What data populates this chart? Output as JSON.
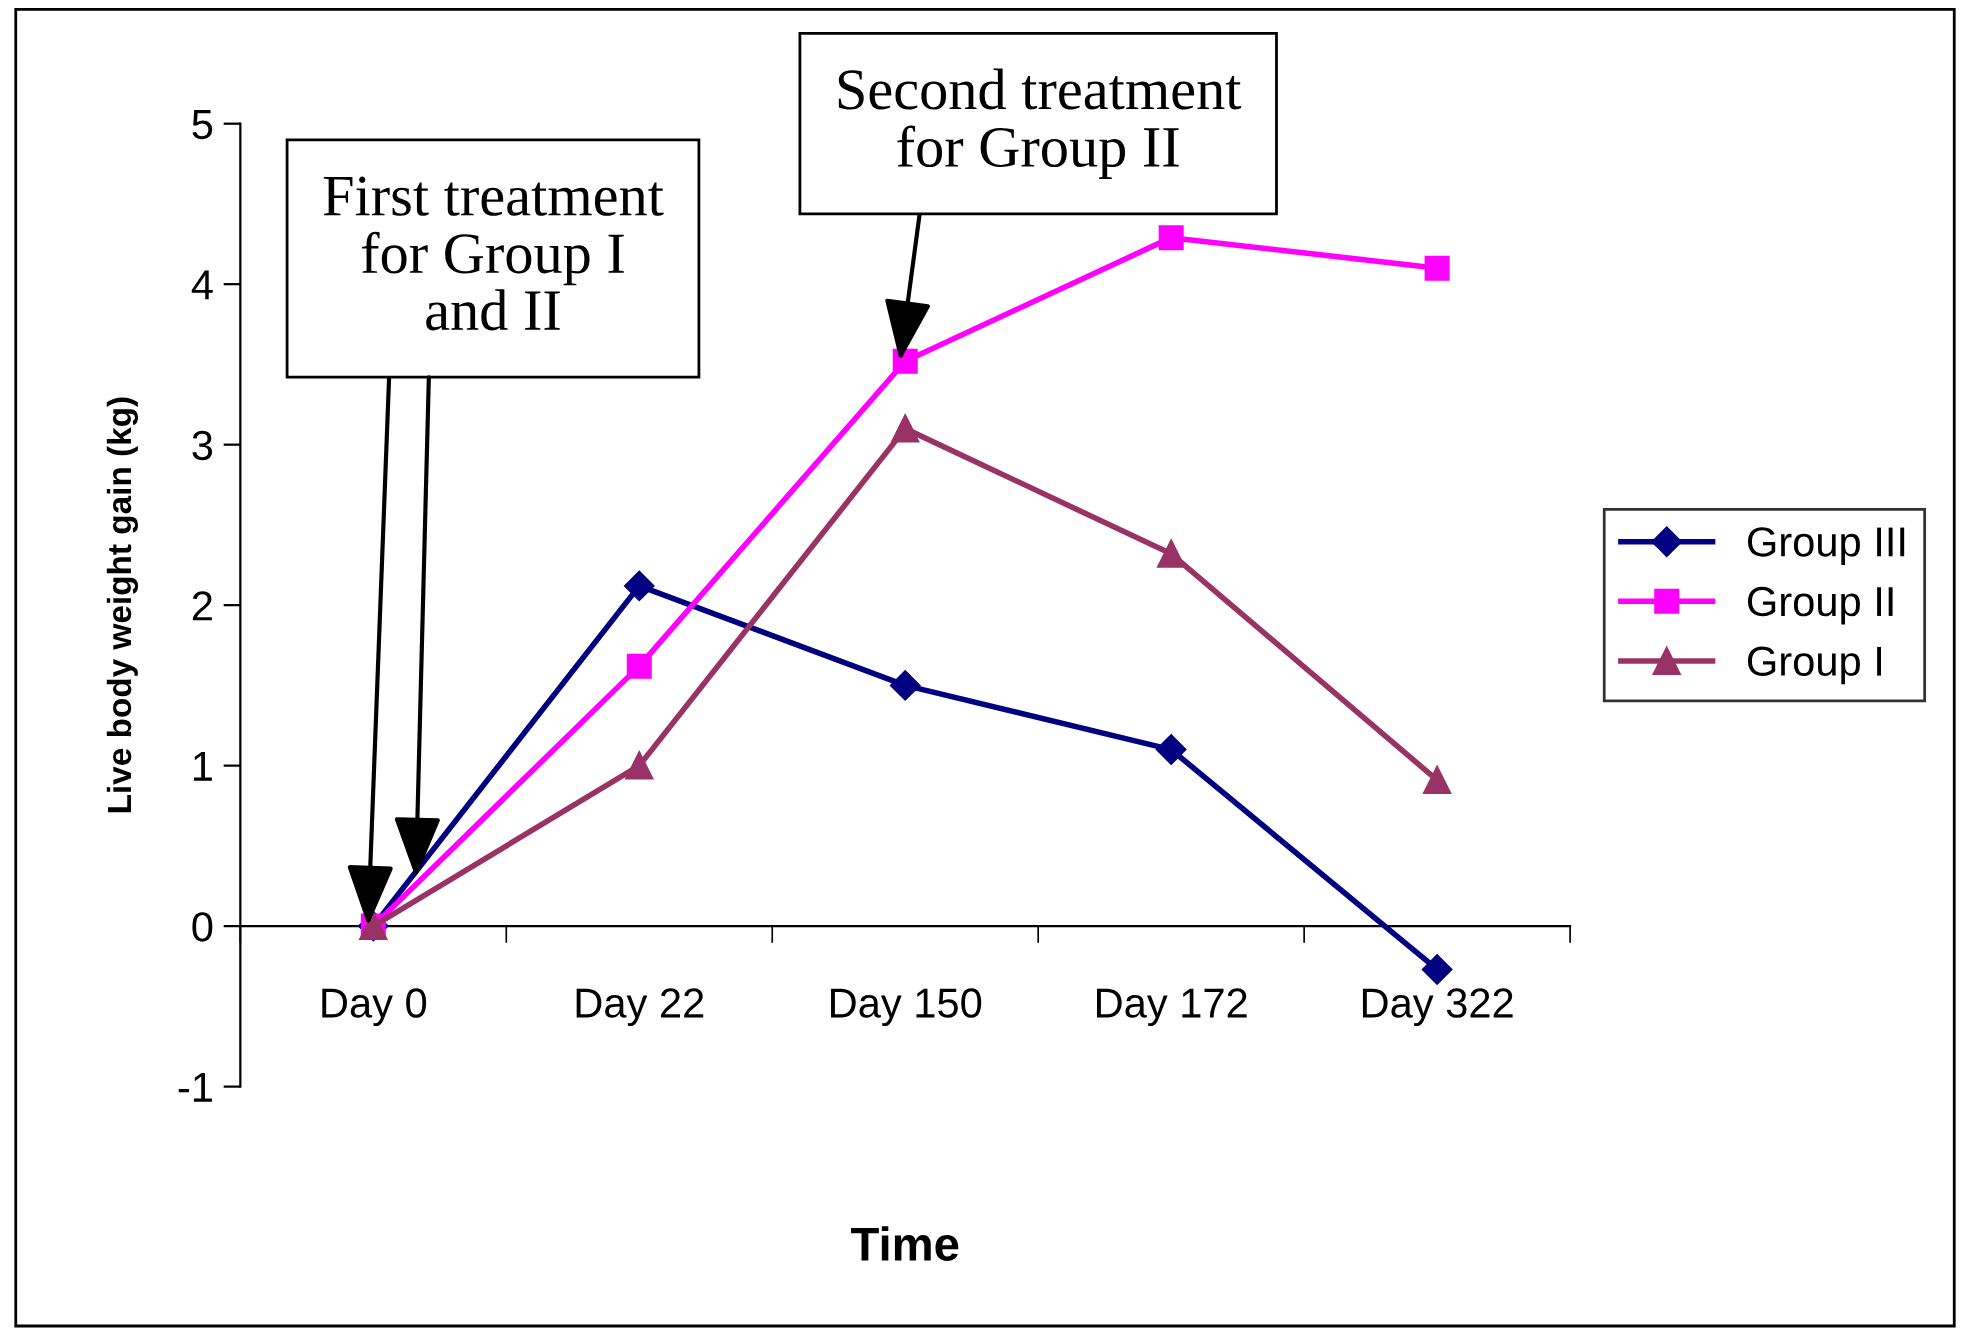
{
  "chart_data": {
    "type": "line",
    "xlabel": "Time",
    "ylabel": "Live body weight gain (kg)",
    "categories": [
      "Day 0",
      "Day 22",
      "Day 150",
      "Day 172",
      "Day 322"
    ],
    "series": [
      {
        "name": "Group III",
        "color": "#000080",
        "marker": "diamond",
        "values": [
          0,
          2.12,
          1.5,
          1.1,
          -0.27
        ]
      },
      {
        "name": "Group II",
        "color": "#ff00ff",
        "marker": "square",
        "values": [
          0,
          1.62,
          3.52,
          4.29,
          4.1
        ]
      },
      {
        "name": "Group I",
        "color": "#993366",
        "marker": "triangle",
        "values": [
          0,
          1.0,
          3.1,
          2.32,
          0.91
        ]
      }
    ],
    "annotations": [
      {
        "text": "First treatment\nfor Group I\nand II",
        "x": "Day 0",
        "y": 0
      },
      {
        "text": "Second treatment\nfor Group II",
        "x": "Day 150",
        "y": 3.52
      }
    ],
    "ylim": [
      -1,
      5
    ],
    "yticks": [
      -1,
      0,
      1,
      2,
      3,
      4,
      5
    ],
    "grid": false,
    "legend": "right",
    "line_style": "solid"
  }
}
